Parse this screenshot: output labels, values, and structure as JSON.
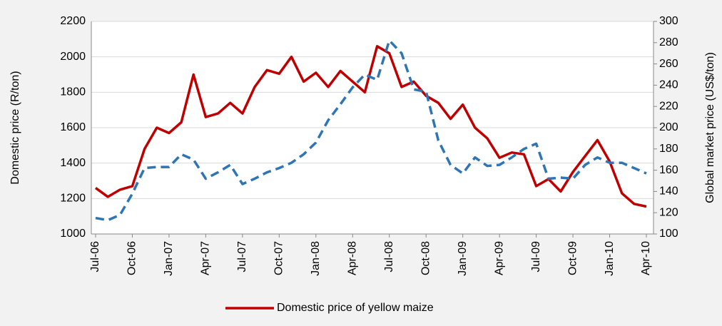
{
  "chart_data": {
    "type": "line",
    "categories": [
      "Jul-06",
      null,
      null,
      "Oct-06",
      null,
      null,
      "Jan-07",
      null,
      null,
      "Apr-07",
      null,
      null,
      "Jul-07",
      null,
      null,
      "Oct-07",
      null,
      null,
      "Jan-08",
      null,
      null,
      "Apr-08",
      null,
      null,
      "Jul-08",
      null,
      null,
      "Oct-08",
      null,
      null,
      "Jan-09",
      null,
      null,
      "Apr-09",
      null,
      null,
      "Jul-09",
      null,
      null,
      "Oct-09",
      null,
      null,
      "Jan-10",
      null,
      null,
      "Apr-10"
    ],
    "series": [
      {
        "name": "Domestic price of yellow maize",
        "color": "#c00000",
        "dash": false,
        "values": [
          1260,
          1210,
          1250,
          1270,
          1480,
          1600,
          1570,
          1630,
          1900,
          1660,
          1680,
          1740,
          1680,
          1830,
          1925,
          1905,
          2000,
          1860,
          1910,
          1830,
          1920,
          1860,
          1800,
          2060,
          2020,
          1830,
          1860,
          1780,
          1740,
          1650,
          1730,
          1600,
          1540,
          1430,
          1460,
          1450,
          1270,
          1310,
          1240,
          1350,
          1440,
          1530,
          1410,
          1230,
          1170,
          1155
        ]
      },
      {
        "color": "#2e75b6",
        "dash": true,
        "axis": "y2",
        "values": [
          115,
          113,
          118,
          138,
          162,
          163,
          163,
          175,
          170,
          152,
          158,
          165,
          147,
          152,
          158,
          162,
          167,
          175,
          186,
          207,
          222,
          238,
          250,
          245,
          282,
          270,
          236,
          234,
          188,
          165,
          157,
          172,
          164,
          165,
          172,
          180,
          185,
          152,
          153,
          152,
          165,
          172,
          167,
          167,
          162,
          157
        ]
      }
    ],
    "y_label": "Domestic price (R/ton)",
    "y2_label": "Global market price (US$/ton)",
    "ylim": [
      1000,
      2200
    ],
    "yticks": [
      1000,
      1200,
      1400,
      1600,
      1800,
      2000,
      2200
    ],
    "y2lim": [
      100,
      300
    ],
    "y2ticks": [
      100,
      120,
      140,
      160,
      180,
      200,
      220,
      240,
      260,
      280,
      300
    ],
    "grid": true,
    "legend": "bottom"
  }
}
